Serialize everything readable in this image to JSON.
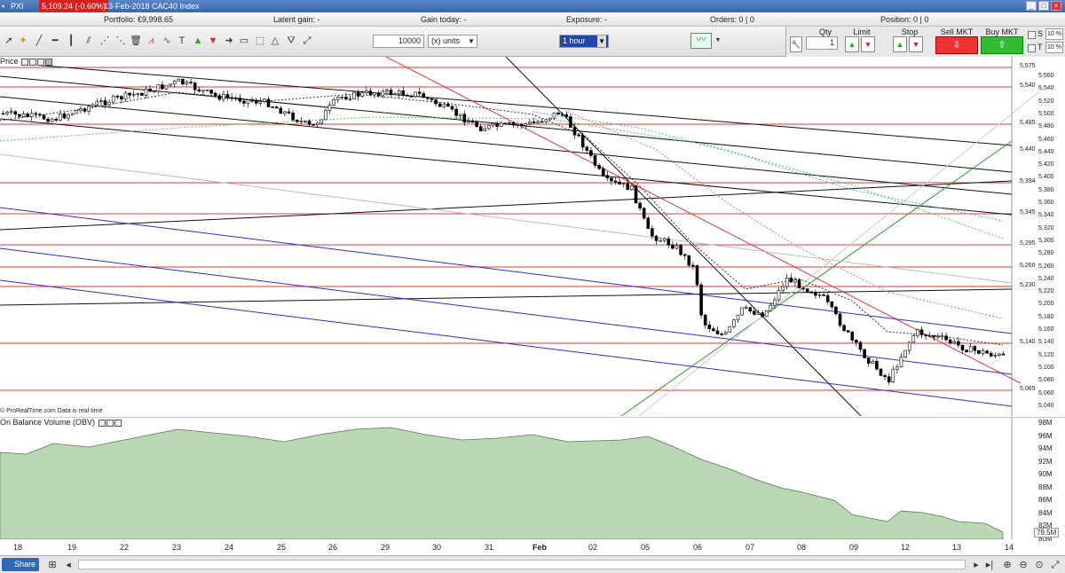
{
  "titlebar": {
    "app": "PXI",
    "price_badge": "5,109.24 (-0.60%)",
    "date_instrument": "13-Feb-2018 CAC40 Index"
  },
  "info": {
    "portfolio": "Portfolio: €9,998.65",
    "latent_gain": "Latent gain: -",
    "gain_today": "Gain today: -",
    "exposure": "Exposure: -",
    "orders": "Orders: 0 | 0",
    "position": "Position: 0 | 0"
  },
  "toolbar": {
    "units_value": "10000",
    "units_label": "(x) units",
    "timeframe": "1 hour"
  },
  "trade": {
    "qty_label": "Qty",
    "qty_value": "1",
    "limit_label": "Limit",
    "stop_label": "Stop",
    "sell_label": "Sell MKT",
    "buy_label": "Buy MKT",
    "s_label": "S",
    "t_label": "T",
    "s_pct": "10 %",
    "t_pct": "10 %"
  },
  "price_pane": {
    "label": "Price",
    "attribution": "© ProRealTime.com  Data is real time",
    "axis_ticks": [
      "5,560",
      "5,540",
      "5,520",
      "5,500",
      "5,480",
      "5,460",
      "5,440",
      "5,420",
      "5,400",
      "5,380",
      "5,360",
      "5,340",
      "5,320",
      "5,300",
      "5,280",
      "5,260",
      "5,240",
      "5,220",
      "5,200",
      "5,180",
      "5,160",
      "5,140",
      "5,120",
      "5,100",
      "5,080",
      "5,060",
      "5,040"
    ],
    "line_labels": [
      "5,575",
      "5,540",
      "5,485",
      "5,440",
      "5,394",
      "5,345",
      "5,295",
      "5,260",
      "5,230",
      "5,140",
      "5,065"
    ]
  },
  "obv_pane": {
    "label": "On Balance Volume (OBV)",
    "axis_ticks": [
      "98M",
      "96M",
      "94M",
      "92M",
      "90M",
      "88M",
      "86M",
      "84M",
      "82M",
      "80M"
    ],
    "last_value": "79.5M"
  },
  "dates": [
    "18",
    "19",
    "22",
    "23",
    "24",
    "25",
    "26",
    "29",
    "30",
    "31",
    "Feb",
    "02",
    "05",
    "06",
    "07",
    "08",
    "09",
    "12",
    "13",
    "14"
  ],
  "bottom": {
    "share_label": "Share"
  },
  "colors": {
    "up": "#ffffff",
    "down": "#000000",
    "obv_fill": "#b9d7b2",
    "support": "#e03a3a",
    "channel": "#2b2bd8"
  }
}
